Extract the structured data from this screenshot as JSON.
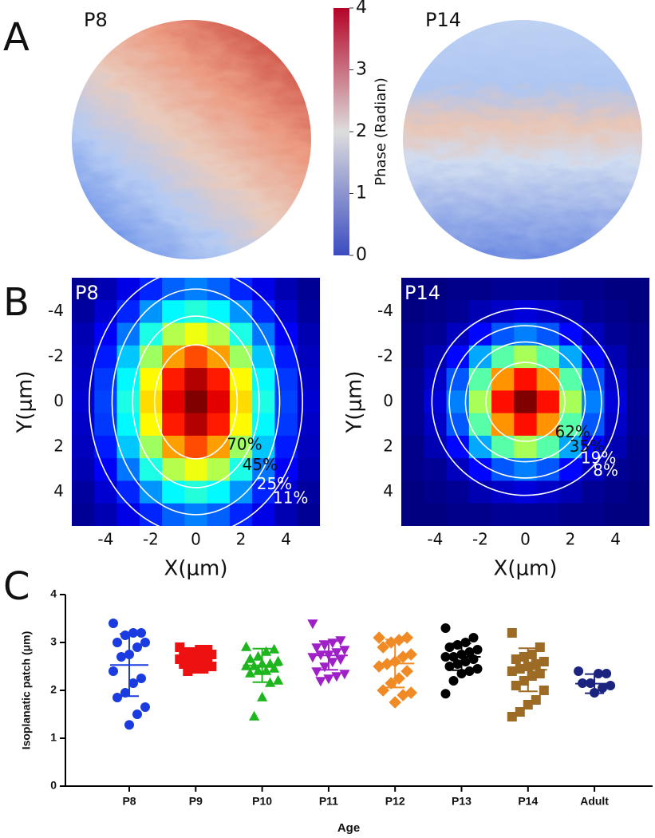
{
  "chart_data": [
    {
      "type": "phase_map",
      "panel": "A",
      "maps": [
        {
          "title": "P8"
        },
        {
          "title": "P14"
        }
      ],
      "colorbar": {
        "label": "Phase (Radian)",
        "lim": [
          0,
          4
        ],
        "ticks": [
          0,
          1,
          2,
          3,
          4
        ]
      }
    },
    {
      "type": "heatmap",
      "panel": "B",
      "xlabel": "X(μm)",
      "ylabel": "Y(μm)",
      "x": [
        -5,
        -4,
        -3,
        -2,
        -1,
        0,
        1,
        2,
        3,
        4,
        5
      ],
      "y": [
        -5,
        -4,
        -3,
        -2,
        -1,
        0,
        1,
        2,
        3,
        4,
        5
      ],
      "xlim": [
        -5.5,
        5.5
      ],
      "ylim": [
        -5.5,
        5.5
      ],
      "y_inverted": true,
      "xticks": [
        -4,
        -2,
        0,
        2,
        4
      ],
      "yticks": [
        -4,
        -2,
        0,
        2,
        4
      ],
      "zlim": [
        0,
        100
      ],
      "colormap": "jet",
      "maps": [
        {
          "title": "P8",
          "z": [
            [
              2,
              5,
              10,
              16,
              22,
              25,
              22,
              16,
              10,
              5,
              2
            ],
            [
              3,
              8,
              16,
              27,
              37,
              41,
              37,
              27,
              16,
              8,
              3
            ],
            [
              5,
              12,
              24,
              40,
              55,
              61,
              55,
              40,
              24,
              12,
              5
            ],
            [
              6,
              15,
              32,
              53,
              72,
              80,
              72,
              53,
              32,
              15,
              6
            ],
            [
              7,
              18,
              37,
              63,
              85,
              95,
              85,
              63,
              37,
              18,
              7
            ],
            [
              8,
              19,
              40,
              66,
              90,
              100,
              90,
              66,
              40,
              19,
              8
            ],
            [
              7,
              18,
              37,
              63,
              85,
              95,
              85,
              63,
              37,
              18,
              7
            ],
            [
              6,
              15,
              32,
              53,
              72,
              80,
              72,
              53,
              32,
              15,
              6
            ],
            [
              5,
              12,
              24,
              40,
              55,
              61,
              55,
              40,
              24,
              12,
              5
            ],
            [
              3,
              8,
              16,
              27,
              37,
              41,
              37,
              27,
              16,
              8,
              3
            ],
            [
              2,
              5,
              10,
              16,
              22,
              25,
              22,
              16,
              10,
              5,
              2
            ]
          ],
          "contours": {
            "values": [
              70,
              45,
              25,
              11
            ],
            "value_labels": [
              "70%",
              "45%",
              "25%",
              "11%"
            ]
          }
        },
        {
          "title": "P14",
          "z": [
            [
              0,
              0,
              1,
              1,
              2,
              2,
              2,
              1,
              1,
              0,
              0
            ],
            [
              0,
              1,
              2,
              5,
              7,
              9,
              7,
              5,
              2,
              1,
              0
            ],
            [
              1,
              2,
              6,
              13,
              21,
              25,
              21,
              13,
              6,
              2,
              1
            ],
            [
              1,
              5,
              13,
              29,
              46,
              54,
              46,
              29,
              13,
              5,
              1
            ],
            [
              2,
              7,
              21,
              46,
              73,
              86,
              73,
              46,
              21,
              7,
              2
            ],
            [
              2,
              9,
              25,
              54,
              86,
              100,
              86,
              54,
              25,
              9,
              2
            ],
            [
              2,
              7,
              21,
              46,
              73,
              86,
              73,
              46,
              21,
              7,
              2
            ],
            [
              1,
              5,
              13,
              29,
              46,
              54,
              46,
              29,
              13,
              5,
              1
            ],
            [
              1,
              2,
              6,
              13,
              21,
              25,
              21,
              13,
              6,
              2,
              1
            ],
            [
              0,
              1,
              2,
              5,
              7,
              9,
              7,
              5,
              2,
              1,
              0
            ],
            [
              0,
              0,
              1,
              1,
              2,
              2,
              2,
              1,
              1,
              0,
              0
            ]
          ],
          "contours": {
            "values": [
              62,
              35,
              19,
              8
            ],
            "value_labels": [
              "62%",
              "35%",
              "19%",
              "8%"
            ]
          }
        }
      ]
    },
    {
      "type": "dot_plot",
      "panel": "C",
      "ylabel": "Isoplanatic patch (μm)",
      "xlabel": "Age",
      "ylim": [
        0,
        4
      ],
      "yticks": [
        0,
        1,
        2,
        3,
        4
      ],
      "categories": [
        "P8",
        "P9",
        "P10",
        "P11",
        "P12",
        "P13",
        "P14",
        "Adult"
      ],
      "groups": [
        {
          "color": "#1a3be0",
          "marker": "circle",
          "mean": 2.53,
          "sd": 0.65,
          "values": [
            3.4,
            3.2,
            3.2,
            3.15,
            3.0,
            3.0,
            2.9,
            2.75,
            2.7,
            2.4,
            2.25,
            2.15,
            1.95,
            1.85,
            1.65,
            1.5,
            1.28
          ]
        },
        {
          "color": "#ee1111",
          "marker": "square",
          "mean": 2.67,
          "sd": 0.14,
          "values": [
            2.9,
            2.85,
            2.85,
            2.8,
            2.8,
            2.75,
            2.7,
            2.7,
            2.65,
            2.65,
            2.6,
            2.6,
            2.55,
            2.55,
            2.5,
            2.45,
            2.45,
            2.4
          ]
        },
        {
          "color": "#1fb51f",
          "marker": "triangle",
          "mean": 2.52,
          "sd": 0.35,
          "values": [
            2.9,
            2.85,
            2.8,
            2.7,
            2.65,
            2.6,
            2.55,
            2.55,
            2.5,
            2.5,
            2.45,
            2.4,
            2.4,
            2.35,
            2.2,
            2.15,
            1.85,
            1.45
          ]
        },
        {
          "color": "#a020c8",
          "marker": "triangle-down",
          "mean": 2.73,
          "sd": 0.3,
          "values": [
            3.4,
            3.05,
            3.0,
            2.95,
            2.9,
            2.85,
            2.8,
            2.75,
            2.75,
            2.7,
            2.65,
            2.6,
            2.5,
            2.4,
            2.35,
            2.3,
            2.25,
            2.2
          ]
        },
        {
          "color": "#f08a24",
          "marker": "diamond",
          "mean": 2.56,
          "sd": 0.5,
          "values": [
            3.1,
            3.1,
            3.05,
            3.0,
            2.9,
            2.75,
            2.7,
            2.6,
            2.55,
            2.5,
            2.4,
            2.25,
            2.15,
            2.0,
            1.95,
            1.9,
            1.75
          ]
        },
        {
          "color": "#000000",
          "marker": "circle",
          "mean": 2.7,
          "sd": 0.28,
          "values": [
            3.3,
            3.1,
            3.0,
            2.95,
            2.9,
            2.85,
            2.8,
            2.75,
            2.7,
            2.7,
            2.65,
            2.6,
            2.55,
            2.5,
            2.45,
            2.4,
            2.35,
            2.2,
            1.93
          ]
        },
        {
          "color": "#9c6b25",
          "marker": "square",
          "mean": 2.43,
          "sd": 0.45,
          "values": [
            3.2,
            2.9,
            2.75,
            2.7,
            2.65,
            2.6,
            2.55,
            2.5,
            2.45,
            2.4,
            2.35,
            2.3,
            2.2,
            2.1,
            2.0,
            1.8,
            1.7,
            1.55,
            1.45
          ]
        },
        {
          "color": "#1a237e",
          "marker": "circle",
          "mean": 2.14,
          "sd": 0.2,
          "values": [
            2.4,
            2.35,
            2.35,
            2.15,
            2.15,
            2.1,
            2.05,
            1.95
          ]
        }
      ]
    }
  ]
}
